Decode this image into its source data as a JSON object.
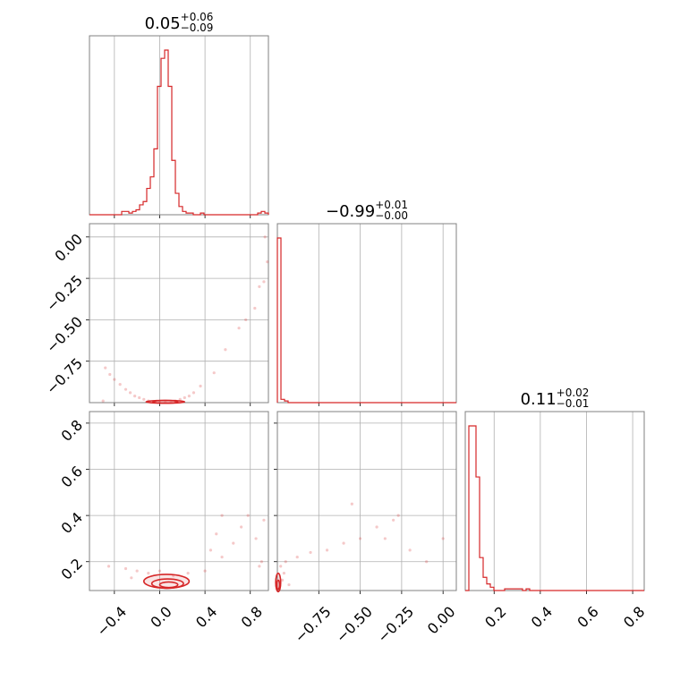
{
  "colors": {
    "series": "#d62728",
    "grid": "#b0b0b0",
    "frame": "#808080"
  },
  "chart_data": {
    "type": "corner",
    "titles": [
      {
        "value": "0.05",
        "upper": "+0.06",
        "lower": "−0.09"
      },
      {
        "value": "−0.99",
        "upper": "+0.01",
        "lower": "−0.00"
      },
      {
        "value": "0.11",
        "upper": "+0.02",
        "lower": "−0.01"
      }
    ],
    "params": [
      {
        "range": [
          -0.62,
          0.96
        ],
        "ticks": [
          -0.4,
          0.0,
          0.4,
          0.8
        ],
        "tick_labels": [
          "−0.4",
          "0.0",
          "0.4",
          "0.8"
        ]
      },
      {
        "range": [
          -1.0,
          0.08
        ],
        "ticks": [
          -0.75,
          -0.5,
          -0.25,
          0.0
        ],
        "tick_labels": [
          "−0.75",
          "−0.50",
          "−0.25",
          "0.00"
        ]
      },
      {
        "range": [
          0.075,
          0.85
        ],
        "ticks": [
          0.2,
          0.4,
          0.6,
          0.8
        ],
        "tick_labels": [
          "0.2",
          "0.4",
          "0.6",
          "0.8"
        ]
      }
    ],
    "histograms": [
      {
        "edges_range": [
          -0.62,
          0.96
        ],
        "bins": 50,
        "counts": [
          0,
          0,
          0,
          0,
          0,
          0,
          0,
          0,
          0,
          2,
          2,
          1,
          2,
          3,
          6,
          8,
          16,
          23,
          40,
          78,
          95,
          100,
          78,
          33,
          13,
          5,
          2,
          1,
          1,
          0,
          0,
          1,
          0,
          0,
          0,
          0,
          0,
          0,
          0,
          0,
          0,
          0,
          0,
          0,
          0,
          0,
          0,
          1,
          2,
          1
        ]
      },
      {
        "edges_range": [
          -1.0,
          0.08
        ],
        "bins": 50,
        "counts": [
          100,
          2,
          1,
          0,
          0,
          0,
          0,
          0,
          0,
          0,
          0,
          0,
          0,
          0,
          0,
          0,
          0,
          0,
          0,
          0,
          0,
          0,
          0,
          0,
          0,
          0,
          0,
          0,
          0,
          0,
          0,
          0,
          0,
          0,
          0,
          0,
          0,
          0,
          0,
          0,
          0,
          0,
          0,
          0,
          0,
          0,
          0,
          0,
          0,
          0
        ]
      },
      {
        "edges_range": [
          0.075,
          0.85
        ],
        "bins": 50,
        "counts": [
          0,
          100,
          100,
          69,
          20,
          8,
          4,
          2,
          0,
          0,
          0,
          1,
          1,
          1,
          1,
          1,
          0,
          1,
          0,
          0,
          0,
          0,
          0,
          0,
          0,
          0,
          0,
          0,
          0,
          0,
          0,
          0,
          0,
          0,
          0,
          0,
          0,
          0,
          0,
          0,
          0,
          0,
          0,
          0,
          0,
          0,
          0,
          0,
          0,
          0
        ]
      }
    ],
    "pairs": [
      {
        "x_param": 0,
        "y_param": 1,
        "points": [
          [
            -0.5,
            -0.99
          ],
          [
            -0.48,
            -0.79
          ],
          [
            -0.44,
            -0.83
          ],
          [
            -0.4,
            -0.86
          ],
          [
            -0.35,
            -0.89
          ],
          [
            -0.3,
            -0.92
          ],
          [
            -0.26,
            -0.94
          ],
          [
            -0.22,
            -0.96
          ],
          [
            -0.18,
            -0.97
          ],
          [
            -0.14,
            -0.98
          ],
          [
            -0.1,
            -0.99
          ],
          [
            -0.05,
            -0.995
          ],
          [
            0.0,
            -0.997
          ],
          [
            0.05,
            -0.998
          ],
          [
            0.1,
            -0.995
          ],
          [
            0.14,
            -0.99
          ],
          [
            0.18,
            -0.98
          ],
          [
            0.22,
            -0.97
          ],
          [
            0.26,
            -0.96
          ],
          [
            0.3,
            -0.94
          ],
          [
            0.36,
            -0.9
          ],
          [
            0.48,
            -0.82
          ],
          [
            0.58,
            -0.68
          ],
          [
            0.7,
            -0.55
          ],
          [
            0.76,
            -0.5
          ],
          [
            0.84,
            -0.43
          ],
          [
            0.88,
            -0.3
          ],
          [
            0.92,
            -0.27
          ],
          [
            0.95,
            -0.15
          ],
          [
            0.93,
            0.0
          ]
        ],
        "contours": [
          {
            "center": [
              0.05,
              -0.995
            ],
            "radii": [
              0.17,
              0.008
            ]
          },
          {
            "center": [
              0.05,
              -0.995
            ],
            "radii": [
              0.11,
              0.005
            ]
          }
        ]
      },
      {
        "x_param": 0,
        "y_param": 2,
        "points": [
          [
            -0.45,
            0.18
          ],
          [
            -0.3,
            0.17
          ],
          [
            -0.2,
            0.16
          ],
          [
            -0.25,
            0.13
          ],
          [
            -0.1,
            0.15
          ],
          [
            0.0,
            0.16
          ],
          [
            0.12,
            0.14
          ],
          [
            0.25,
            0.15
          ],
          [
            0.4,
            0.16
          ],
          [
            0.55,
            0.22
          ],
          [
            0.65,
            0.28
          ],
          [
            0.72,
            0.35
          ],
          [
            0.78,
            0.4
          ],
          [
            0.85,
            0.3
          ],
          [
            0.9,
            0.2
          ],
          [
            0.55,
            0.4
          ],
          [
            0.5,
            0.32
          ],
          [
            0.45,
            0.25
          ],
          [
            0.92,
            0.38
          ],
          [
            0.88,
            0.18
          ]
        ],
        "contours": [
          {
            "center": [
              0.06,
              0.115
            ],
            "radii": [
              0.2,
              0.03
            ]
          },
          {
            "center": [
              0.07,
              0.105
            ],
            "radii": [
              0.14,
              0.02
            ]
          },
          {
            "center": [
              0.08,
              0.1
            ],
            "radii": [
              0.08,
              0.012
            ]
          }
        ]
      },
      {
        "x_param": 1,
        "y_param": 2,
        "points": [
          [
            -0.97,
            0.12
          ],
          [
            -0.96,
            0.15
          ],
          [
            -0.95,
            0.2
          ],
          [
            -0.93,
            0.1
          ],
          [
            -0.98,
            0.18
          ],
          [
            -0.88,
            0.22
          ],
          [
            -0.8,
            0.24
          ],
          [
            -0.7,
            0.25
          ],
          [
            -0.6,
            0.28
          ],
          [
            -0.5,
            0.3
          ],
          [
            -0.4,
            0.35
          ],
          [
            -0.3,
            0.38
          ],
          [
            -0.2,
            0.25
          ],
          [
            -0.1,
            0.2
          ],
          [
            0.0,
            0.3
          ],
          [
            -0.55,
            0.45
          ],
          [
            -0.35,
            0.3
          ],
          [
            -0.27,
            0.4
          ]
        ],
        "contours": [
          {
            "center": [
              -0.995,
              0.11
            ],
            "radii": [
              0.015,
              0.04
            ]
          },
          {
            "center": [
              -0.995,
              0.1
            ],
            "radii": [
              0.008,
              0.02
            ]
          }
        ]
      }
    ]
  }
}
